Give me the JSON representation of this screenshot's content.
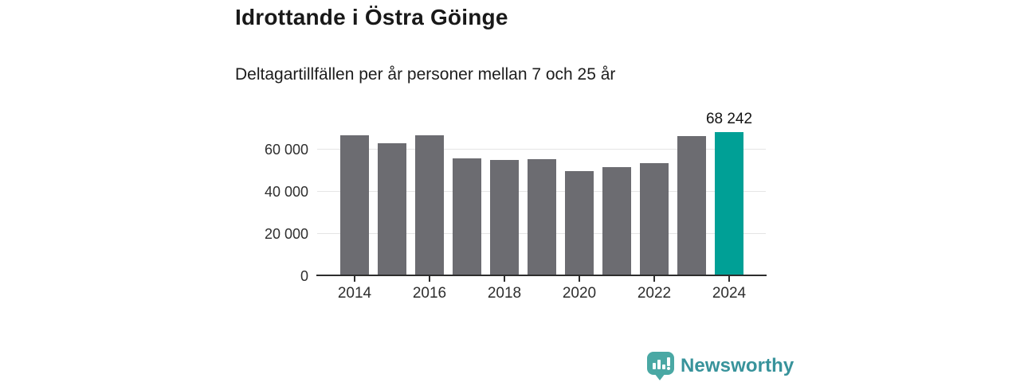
{
  "header": {
    "title": "Idrottande i Östra Göinge",
    "subtitle": "Deltagartillfällen per år personer mellan 7 och 25 år"
  },
  "chart_data": {
    "type": "bar",
    "title": "Idrottande i Östra Göinge",
    "subtitle": "Deltagartillfällen per år personer mellan 7 och 25 år",
    "categories": [
      "2014",
      "2015",
      "2016",
      "2017",
      "2018",
      "2019",
      "2020",
      "2021",
      "2022",
      "2023",
      "2024"
    ],
    "values": [
      66500,
      63000,
      66500,
      55800,
      54800,
      55400,
      49500,
      51700,
      53300,
      66400,
      68242
    ],
    "highlight": {
      "index": 10,
      "label": "68 242",
      "value": 68242
    },
    "y_axis": {
      "ticks": [
        0,
        20000,
        40000,
        60000
      ],
      "tick_labels": [
        "0",
        "20 000",
        "40 000",
        "60 000"
      ],
      "max": 70000
    },
    "x_axis": {
      "tick_labels": [
        "2014",
        "2016",
        "2018",
        "2020",
        "2022",
        "2024"
      ],
      "tick_indices": [
        0,
        2,
        4,
        6,
        8,
        10
      ]
    },
    "grid": true,
    "legend": false,
    "colors": {
      "bar": "#6c6c71",
      "highlight": "#00a096"
    }
  },
  "branding": {
    "name": "Newsworthy",
    "icon": "newsworthy-bar-chart-bubble-icon",
    "icon_color": "#4aa8a4",
    "text_color": "#38939b"
  }
}
